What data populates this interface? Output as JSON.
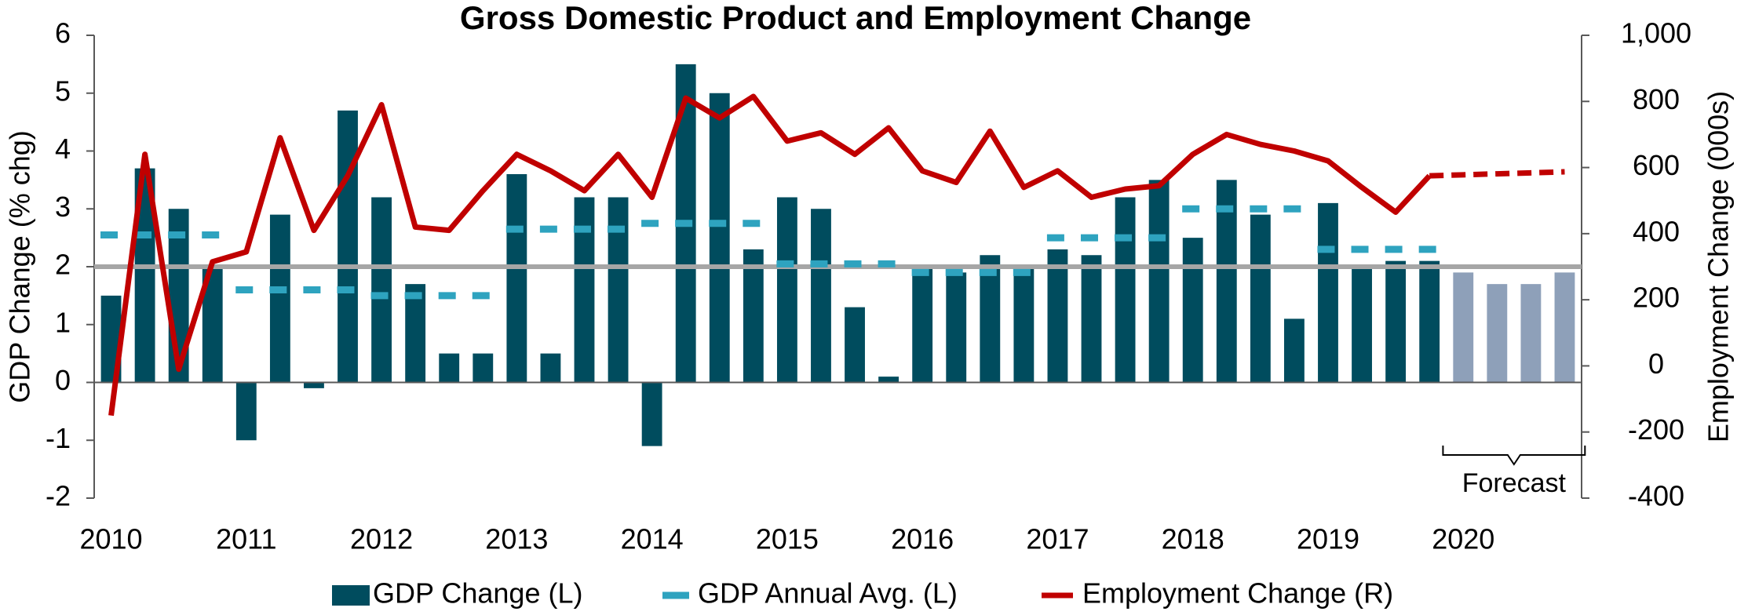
{
  "chart_data": {
    "type": "bar",
    "title": "Gross Domestic Product and Employment Change",
    "y_label": "GDP Change (% chg)",
    "y2_label": "Employment Change (000s)",
    "categories": [
      "2010",
      null,
      null,
      null,
      "2011",
      null,
      null,
      null,
      "2012",
      null,
      null,
      null,
      "2013",
      null,
      null,
      null,
      "2014",
      null,
      null,
      null,
      "2015",
      null,
      null,
      null,
      "2016",
      null,
      null,
      null,
      "2017",
      null,
      null,
      null,
      "2018",
      null,
      null,
      null,
      "2019",
      null,
      null,
      null,
      "2020",
      null,
      null,
      null
    ],
    "series": [
      {
        "name": "GDP Change (L)",
        "type": "bar",
        "color": "#004c5e",
        "colors": [
          "#004c5e",
          "#004c5e",
          "#004c5e",
          "#004c5e",
          "#004c5e",
          "#004c5e",
          "#004c5e",
          "#004c5e",
          "#004c5e",
          "#004c5e",
          "#004c5e",
          "#004c5e",
          "#004c5e",
          "#004c5e",
          "#004c5e",
          "#004c5e",
          "#004c5e",
          "#004c5e",
          "#004c5e",
          "#004c5e",
          "#004c5e",
          "#004c5e",
          "#004c5e",
          "#004c5e",
          "#004c5e",
          "#004c5e",
          "#004c5e",
          "#004c5e",
          "#004c5e",
          "#004c5e",
          "#004c5e",
          "#004c5e",
          "#004c5e",
          "#004c5e",
          "#004c5e",
          "#004c5e",
          "#004c5e",
          "#004c5e",
          "#004c5e",
          "#004c5e",
          "#8ea0b9",
          "#8ea0b9",
          "#8ea0b9",
          "#8ea0b9"
        ],
        "values": [
          1.5,
          3.7,
          3.0,
          2.0,
          -1.0,
          2.9,
          -0.1,
          4.7,
          3.2,
          1.7,
          0.5,
          0.5,
          3.6,
          0.5,
          3.2,
          3.2,
          -1.1,
          5.5,
          5.0,
          2.3,
          3.2,
          3.0,
          1.3,
          0.1,
          2.0,
          1.9,
          2.2,
          2.0,
          2.3,
          2.2,
          3.2,
          3.5,
          2.5,
          3.5,
          2.9,
          1.1,
          3.1,
          2.0,
          2.1,
          2.1,
          1.9,
          1.7,
          1.7,
          1.9
        ]
      },
      {
        "name": "GDP Annual Avg. (L)",
        "type": "dash",
        "color": "#2ea3bf",
        "values": [
          2.55,
          2.55,
          2.55,
          2.55,
          1.6,
          1.6,
          1.6,
          1.6,
          1.5,
          1.5,
          1.5,
          1.5,
          2.65,
          2.65,
          2.65,
          2.65,
          2.75,
          2.75,
          2.75,
          2.75,
          2.05,
          2.05,
          2.05,
          2.05,
          1.9,
          1.9,
          1.9,
          1.9,
          2.5,
          2.5,
          2.5,
          2.5,
          3.0,
          3.0,
          3.0,
          3.0,
          2.3,
          2.3,
          2.3,
          2.3,
          null,
          null,
          null,
          null
        ]
      },
      {
        "name": "Employment Change (R)",
        "type": "line",
        "axis": "y2",
        "color": "#c00000",
        "values": [
          -150,
          640,
          -10,
          315,
          345,
          690,
          410,
          575,
          790,
          420,
          410,
          530,
          640,
          590,
          530,
          640,
          510,
          810,
          750,
          815,
          680,
          705,
          640,
          720,
          590,
          555,
          710,
          540,
          590,
          510,
          535,
          545,
          640,
          700,
          670,
          650,
          620,
          540,
          465,
          575,
          578,
          581,
          584,
          587
        ],
        "dashed": [
          false,
          false,
          false,
          false,
          false,
          false,
          false,
          false,
          false,
          false,
          false,
          false,
          false,
          false,
          false,
          false,
          false,
          false,
          false,
          false,
          false,
          false,
          false,
          false,
          false,
          false,
          false,
          false,
          false,
          false,
          false,
          false,
          false,
          false,
          false,
          false,
          false,
          false,
          false,
          false,
          true,
          true,
          true,
          true
        ]
      }
    ],
    "reference_line": 2,
    "reference_color": "#a6a6a6",
    "annotation": "Forecast",
    "ylim": [
      -2,
      6
    ],
    "yticks": [
      -2,
      -1,
      0,
      1,
      2,
      3,
      4,
      5,
      6
    ],
    "y2lim": [
      -400,
      1000
    ],
    "y2ticks": [
      -400,
      -200,
      0,
      200,
      400,
      600,
      800,
      {
        "value": 1000,
        "label": "1,000"
      }
    ],
    "legend": "bottom"
  }
}
